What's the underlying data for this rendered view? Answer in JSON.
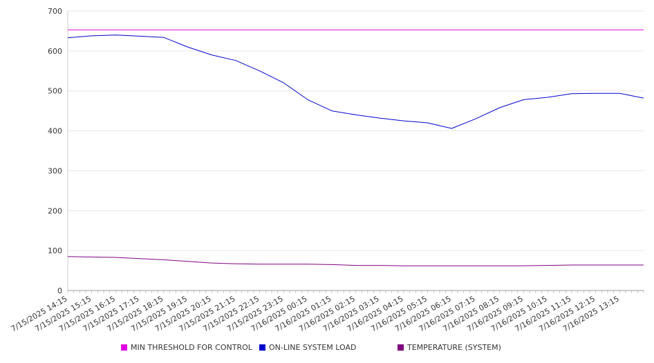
{
  "chart_data": {
    "type": "line",
    "ylim": [
      0,
      700
    ],
    "y_ticks": [
      0,
      100,
      200,
      300,
      400,
      500,
      600,
      700
    ],
    "x_tick_labels": [
      "7/15/2025 14:15",
      "7/15/2025 15:15",
      "7/15/2025 16:15",
      "7/15/2025 17:15",
      "7/15/2025 18:15",
      "7/15/2025 19:15",
      "7/15/2025 20:15",
      "7/15/2025 21:15",
      "7/15/2025 22:15",
      "7/15/2025 23:15",
      "7/16/2025 00:15",
      "7/16/2025 01:15",
      "7/16/2025 02:15",
      "7/16/2025 03:15",
      "7/16/2025 04:15",
      "7/16/2025 05:15",
      "7/16/2025 06:15",
      "7/16/2025 07:15",
      "7/16/2025 08:15",
      "7/16/2025 09:15",
      "7/16/2025 10:15",
      "7/16/2025 11:15",
      "7/16/2025 12:15",
      "7/16/2025 13:15"
    ],
    "x_range": [
      "7/15/2025 14:15",
      "7/16/2025 14:15"
    ],
    "grid": "horizontal",
    "legend_position": "bottom",
    "series": [
      {
        "name": "MIN THRESHOLD FOR CONTROL",
        "color": "#e000e0",
        "x": [
          "7/15/2025 14:15",
          "7/16/2025 14:15"
        ],
        "values": [
          653,
          653
        ]
      },
      {
        "name": "ON-LINE SYSTEM LOAD",
        "color": "#0000cc",
        "x": [
          "7/15/2025 14:15",
          "7/15/2025 15:15",
          "7/15/2025 16:15",
          "7/15/2025 17:15",
          "7/15/2025 18:15",
          "7/15/2025 19:15",
          "7/15/2025 20:15",
          "7/15/2025 21:15",
          "7/15/2025 22:15",
          "7/15/2025 23:15",
          "7/16/2025 00:15",
          "7/16/2025 01:15",
          "7/16/2025 02:15",
          "7/16/2025 03:15",
          "7/16/2025 04:15",
          "7/16/2025 05:15",
          "7/16/2025 06:15",
          "7/16/2025 07:15",
          "7/16/2025 08:15",
          "7/16/2025 09:15",
          "7/16/2025 10:15",
          "7/16/2025 11:15",
          "7/16/2025 12:15",
          "7/16/2025 13:15",
          "7/16/2025 14:15"
        ],
        "values": [
          633,
          638,
          640,
          637,
          634,
          610,
          590,
          576,
          550,
          520,
          478,
          450,
          440,
          432,
          425,
          420,
          406,
          430,
          458,
          478,
          484,
          493,
          494,
          494,
          482
        ]
      },
      {
        "name": "TEMPERATURE (SYSTEM)",
        "color": "#800080",
        "x": [
          "7/15/2025 14:15",
          "7/15/2025 15:15",
          "7/15/2025 16:15",
          "7/15/2025 17:15",
          "7/15/2025 18:15",
          "7/15/2025 19:15",
          "7/15/2025 20:15",
          "7/15/2025 21:15",
          "7/15/2025 22:15",
          "7/15/2025 23:15",
          "7/16/2025 00:15",
          "7/16/2025 01:15",
          "7/16/2025 02:15",
          "7/16/2025 03:15",
          "7/16/2025 04:15",
          "7/16/2025 05:15",
          "7/16/2025 06:15",
          "7/16/2025 07:15",
          "7/16/2025 08:15",
          "7/16/2025 09:15",
          "7/16/2025 10:15",
          "7/16/2025 11:15",
          "7/16/2025 12:15",
          "7/16/2025 13:15",
          "7/16/2025 14:15"
        ],
        "values": [
          85,
          84,
          83,
          80,
          77,
          73,
          69,
          67,
          66,
          66,
          66,
          65,
          63,
          63,
          62,
          62,
          62,
          62,
          62,
          62,
          63,
          64,
          64,
          64,
          64
        ]
      }
    ]
  }
}
